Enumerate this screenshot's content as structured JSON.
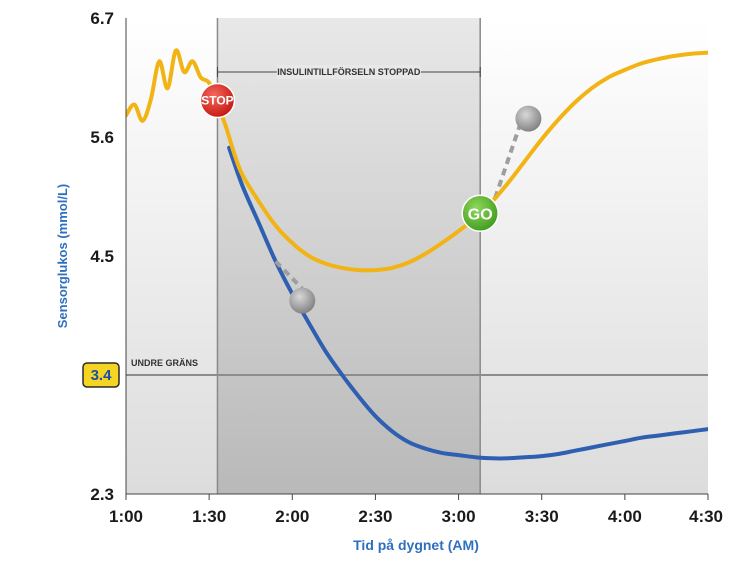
{
  "chart_data": {
    "type": "line",
    "title": "",
    "xlabel": "Tid på dygnet (AM)",
    "ylabel": "Sensorglukos (mmol/L)",
    "x_ticks": [
      "1:00",
      "1:30",
      "2:00",
      "2:30",
      "3:00",
      "3:30",
      "4:00",
      "4:30"
    ],
    "y_ticks": [
      "6.7",
      "5.6",
      "4.5",
      "2.3"
    ],
    "xlim_hours": [
      1.0,
      4.5
    ],
    "ylim": [
      2.3,
      6.7
    ],
    "grid": false,
    "low_limit": {
      "value": 3.4,
      "value_label": "3.4",
      "label": "UNDRE GRÄNS"
    },
    "suspend_window": {
      "start": 1.55,
      "end": 3.13,
      "label": "INSULINTILLFÖRSELN STOPPAD"
    },
    "markers": {
      "stop": "STOP",
      "go": "GO"
    },
    "series": [
      {
        "color": "#f2b315",
        "x": [
          1.0,
          1.05,
          1.1,
          1.15,
          1.2,
          1.25,
          1.3,
          1.35,
          1.4,
          1.45,
          1.5,
          1.55,
          1.6,
          1.65,
          1.7,
          1.8,
          1.9,
          2.0,
          2.1,
          2.2,
          2.3,
          2.4,
          2.5,
          2.6,
          2.7,
          2.8,
          2.9,
          3.0,
          3.1,
          3.2,
          3.3,
          3.4,
          3.5,
          3.6,
          3.7,
          3.8,
          3.9,
          4.0,
          4.1,
          4.2,
          4.3,
          4.4,
          4.5
        ],
        "values": [
          5.8,
          5.9,
          5.75,
          5.95,
          6.3,
          6.05,
          6.4,
          6.2,
          6.3,
          6.15,
          6.1,
          5.9,
          5.7,
          5.45,
          5.25,
          5.0,
          4.78,
          4.62,
          4.5,
          4.43,
          4.39,
          4.37,
          4.37,
          4.39,
          4.44,
          4.52,
          4.62,
          4.73,
          4.85,
          5.0,
          5.18,
          5.38,
          5.58,
          5.76,
          5.92,
          6.05,
          6.15,
          6.22,
          6.28,
          6.32,
          6.35,
          6.37,
          6.38
        ]
      },
      {
        "color": "#2f5fb0",
        "x": [
          1.62,
          1.7,
          1.8,
          1.9,
          2.0,
          2.1,
          2.2,
          2.3,
          2.4,
          2.5,
          2.6,
          2.7,
          2.8,
          2.9,
          3.0,
          3.1,
          3.2,
          3.3,
          3.4,
          3.5,
          3.6,
          3.7,
          3.8,
          3.9,
          4.0,
          4.1,
          4.2,
          4.3,
          4.4,
          4.5
        ],
        "values": [
          5.5,
          5.15,
          4.8,
          4.45,
          4.15,
          3.88,
          3.62,
          3.4,
          3.2,
          3.02,
          2.88,
          2.78,
          2.72,
          2.68,
          2.66,
          2.64,
          2.63,
          2.63,
          2.64,
          2.65,
          2.67,
          2.7,
          2.73,
          2.76,
          2.79,
          2.82,
          2.84,
          2.86,
          2.88,
          2.9
        ]
      }
    ]
  }
}
